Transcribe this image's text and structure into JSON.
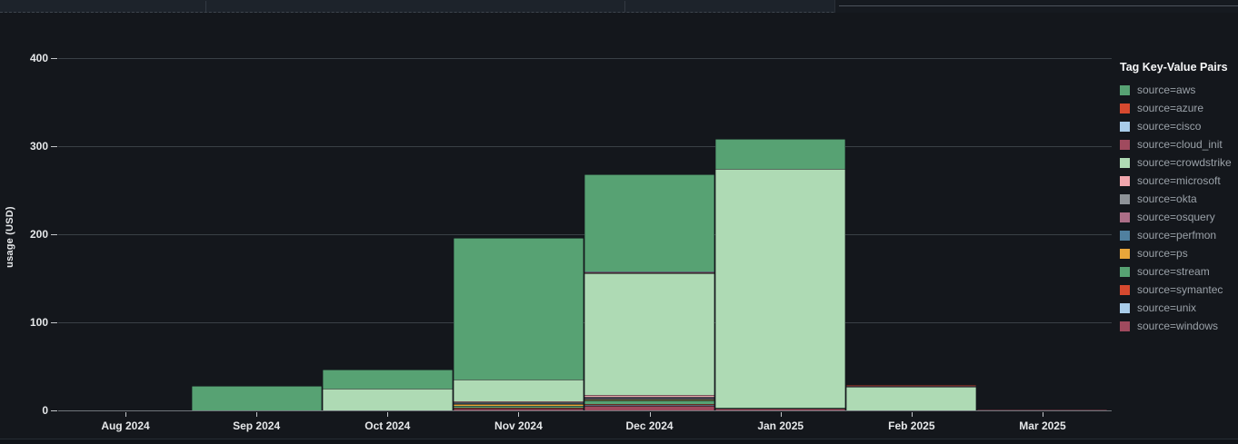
{
  "chart": {
    "ylabel": "usage (USD)",
    "y_ticks": [
      0,
      100,
      200,
      300,
      400
    ]
  },
  "legend": {
    "title": "Tag Key-Value Pairs",
    "items": [
      {
        "label": "source=aws",
        "color": "#57a273"
      },
      {
        "label": "source=azure",
        "color": "#d6492f"
      },
      {
        "label": "source=cisco",
        "color": "#a9cce9"
      },
      {
        "label": "source=cloud_init",
        "color": "#a04a5e"
      },
      {
        "label": "source=crowdstrike",
        "color": "#aedab4"
      },
      {
        "label": "source=microsoft",
        "color": "#f0a6ad"
      },
      {
        "label": "source=okta",
        "color": "#8e9398"
      },
      {
        "label": "source=osquery",
        "color": "#ab6e87"
      },
      {
        "label": "source=perfmon",
        "color": "#50809f"
      },
      {
        "label": "source=ps",
        "color": "#e9a63a"
      },
      {
        "label": "source=stream",
        "color": "#57a273"
      },
      {
        "label": "source=symantec",
        "color": "#d6492f"
      },
      {
        "label": "source=unix",
        "color": "#a9cce9"
      },
      {
        "label": "source=windows",
        "color": "#a04a5e"
      }
    ]
  },
  "chart_data": {
    "type": "bar",
    "stacked": true,
    "title": "",
    "xlabel": "",
    "ylabel": "usage (USD)",
    "ylim": [
      0,
      445
    ],
    "y_ticks": [
      0,
      100,
      200,
      300,
      400
    ],
    "grid": "horizontal",
    "legend_position": "right",
    "categories": [
      "Aug 2024",
      "Sep 2024",
      "Oct 2024",
      "Nov 2024",
      "Dec 2024",
      "Jan 2025",
      "Feb 2025",
      "Mar 2025"
    ],
    "stack_order_note": "series listed bottom-to-top of the stack",
    "series": [
      {
        "name": "source=windows",
        "color": "#a04a5e",
        "values": [
          0,
          0,
          0,
          2,
          5,
          1.6,
          0,
          0.6
        ]
      },
      {
        "name": "source=unix",
        "color": "#a9cce9",
        "values": [
          0,
          0,
          0,
          0.5,
          1,
          0,
          0,
          0
        ]
      },
      {
        "name": "source=symantec",
        "color": "#d6492f",
        "values": [
          0,
          0,
          0,
          0.5,
          1,
          0,
          0,
          0
        ]
      },
      {
        "name": "source=stream",
        "color": "#57a273",
        "values": [
          0,
          0,
          0,
          2.5,
          4,
          1,
          0,
          0
        ]
      },
      {
        "name": "source=ps",
        "color": "#e9a63a",
        "values": [
          0,
          0,
          0,
          1.5,
          1.2,
          0,
          0,
          0
        ]
      },
      {
        "name": "source=perfmon",
        "color": "#50809f",
        "values": [
          0,
          0,
          0,
          1,
          1.2,
          0,
          0,
          0
        ]
      },
      {
        "name": "source=osquery",
        "color": "#ab6e87",
        "values": [
          0,
          0,
          0,
          0.6,
          1.2,
          0,
          0,
          0
        ]
      },
      {
        "name": "source=okta",
        "color": "#8e9398",
        "values": [
          0,
          0,
          0,
          0.6,
          1.2,
          0,
          0,
          0
        ]
      },
      {
        "name": "source=microsoft",
        "color": "#f0a6ad",
        "values": [
          0,
          0,
          0,
          1,
          2.2,
          0.4,
          0,
          0
        ]
      },
      {
        "name": "source=crowdstrike",
        "color": "#aedab4",
        "values": [
          0,
          0,
          25,
          25,
          138,
          271,
          27,
          0
        ]
      },
      {
        "name": "source=cloud_init",
        "color": "#a04a5e",
        "values": [
          0,
          0,
          0,
          0,
          1,
          0,
          0.7,
          0
        ]
      },
      {
        "name": "source=cisco",
        "color": "#a9cce9",
        "values": [
          0,
          0,
          0,
          0,
          0.6,
          0,
          0,
          0
        ]
      },
      {
        "name": "source=azure",
        "color": "#d6492f",
        "values": [
          0,
          0,
          0,
          0,
          0.6,
          0,
          0.7,
          0.6
        ]
      },
      {
        "name": "source=aws",
        "color": "#57a273",
        "values": [
          0,
          28,
          21,
          161,
          110,
          34,
          0.6,
          0
        ]
      }
    ],
    "totals": [
      0,
      28,
      46,
      196,
      268,
      308,
      29,
      1.2
    ]
  }
}
